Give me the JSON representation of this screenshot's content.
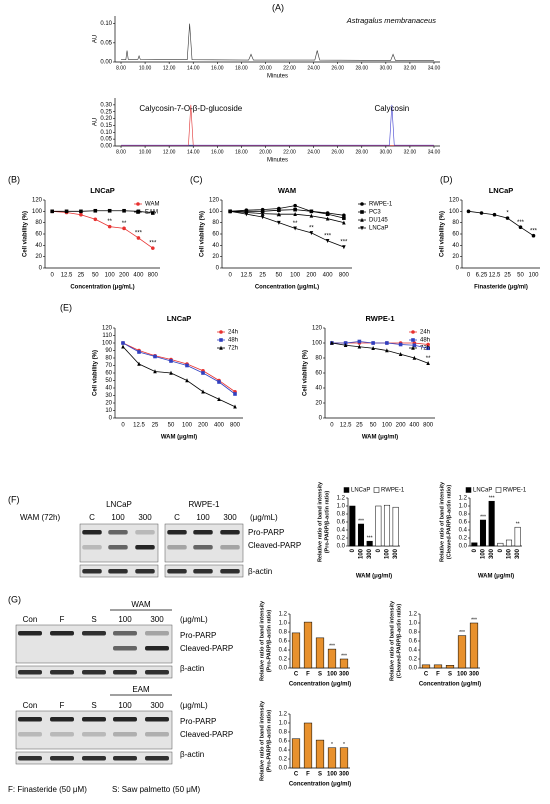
{
  "panels": [
    "(A)",
    "(B)",
    "(C)",
    "(D)",
    "(E)",
    "(F)",
    "(G)"
  ],
  "blots": {
    "F": {
      "treatment": "WAM (72h)",
      "cells": [
        "LNCaP",
        "RWPE-1"
      ],
      "lanes": [
        "C",
        "100",
        "300",
        "C",
        "100",
        "300"
      ],
      "unit": "(μg/mL)",
      "bands": [
        "Pro-PARP",
        "Cleaved-PARP",
        "β-actin"
      ]
    },
    "G": [
      {
        "treatment": "WAM",
        "lanes": [
          "Con",
          "F",
          "S",
          "100",
          "300"
        ],
        "unit": "(μg/mL)",
        "bands": [
          "Pro-PARP",
          "Cleaved-PARP",
          "β-actin"
        ]
      },
      {
        "treatment": "EAM",
        "lanes": [
          "Con",
          "F",
          "S",
          "100",
          "300"
        ],
        "unit": "(μg/mL)",
        "bands": [
          "Pro-PARP",
          "Cleaved-PARP",
          "β-actin"
        ]
      }
    ],
    "footnotes": [
      "F: Finasteride (50 μM)",
      "S: Saw palmetto (50 μM)"
    ]
  },
  "chart_data": [
    {
      "type": "line",
      "title": "Astragalus membranaceus",
      "xlabel": "Minutes",
      "ylabel": "AU",
      "x": [
        8,
        8.4,
        8.5,
        8.6,
        9.4,
        9.5,
        9.6,
        13.5,
        13.7,
        13.9,
        18.6,
        18.8,
        19,
        24.1,
        24.3,
        24.5,
        30.4,
        30.6,
        30.8,
        34
      ],
      "series": [
        {
          "color": "#333333",
          "values": [
            0.006,
            0.006,
            0.03,
            0.007,
            0.007,
            0.016,
            0.007,
            0.006,
            0.1,
            0.006,
            0.005,
            0.02,
            0.005,
            0.005,
            0.03,
            0.005,
            0.004,
            0.02,
            0.004,
            0.004
          ]
        }
      ],
      "xlim": [
        7.5,
        34.5
      ],
      "xticks": [
        {
          "value": 8,
          "label": "8.00"
        },
        {
          "value": 10,
          "label": "10.00"
        },
        {
          "value": 12,
          "label": "12.00"
        },
        {
          "value": 14,
          "label": "14.00"
        },
        {
          "value": 16,
          "label": "16.00"
        },
        {
          "value": 18,
          "label": "18.00"
        },
        {
          "value": 20,
          "label": "20.00"
        },
        {
          "value": 22,
          "label": "22.00"
        },
        {
          "value": 24,
          "label": "24.00"
        },
        {
          "value": 26,
          "label": "26.00"
        },
        {
          "value": 28,
          "label": "28.00"
        },
        {
          "value": 30,
          "label": "30.00"
        },
        {
          "value": 32,
          "label": "32.00"
        },
        {
          "value": 34,
          "label": "34.00"
        }
      ],
      "ylim": [
        0,
        0.12
      ],
      "yticks": [
        {
          "value": 0,
          "label": "0.00"
        },
        0.05,
        {
          "value": 0.1,
          "label": "0.10"
        }
      ]
    },
    {
      "type": "line",
      "xlabel": "Minutes",
      "ylabel": "AU",
      "x": [
        8,
        13.6,
        13.8,
        14,
        30.3,
        30.5,
        30.7,
        34
      ],
      "series": [
        {
          "name": "Calycosin-7-O-β-D-glucoside",
          "color": "#e03030",
          "values": [
            0.003,
            0.003,
            0.3,
            0.003,
            0.003,
            0.003,
            0.003,
            0.003
          ]
        },
        {
          "name": "Calycosin",
          "color": "#4040d0",
          "values": [
            0.006,
            0.006,
            0.006,
            0.006,
            0.006,
            0.3,
            0.006,
            0.006
          ]
        }
      ],
      "xlim": [
        7.5,
        34.5
      ],
      "xticks": [
        {
          "value": 8,
          "label": "8.00"
        },
        {
          "value": 10,
          "label": "10.00"
        },
        {
          "value": 12,
          "label": "12.00"
        },
        {
          "value": 14,
          "label": "14.00"
        },
        {
          "value": 16,
          "label": "16.00"
        },
        {
          "value": 18,
          "label": "18.00"
        },
        {
          "value": 20,
          "label": "20.00"
        },
        {
          "value": 22,
          "label": "22.00"
        },
        {
          "value": 24,
          "label": "24.00"
        },
        {
          "value": 26,
          "label": "26.00"
        },
        {
          "value": 28,
          "label": "28.00"
        },
        {
          "value": 30,
          "label": "30.00"
        },
        {
          "value": 32,
          "label": "32.00"
        },
        {
          "value": 34,
          "label": "34.00"
        }
      ],
      "ylim": [
        0,
        0.35
      ],
      "yticks": [
        {
          "value": 0,
          "label": "0.00"
        },
        0.05,
        {
          "value": 0.1,
          "label": "0.10"
        },
        0.15,
        {
          "value": 0.2,
          "label": "0.20"
        },
        0.25,
        {
          "value": 0.3,
          "label": "0.30"
        }
      ]
    },
    {
      "type": "line",
      "title": "LNCaP",
      "xlabel": "Concentration (μg/mL)",
      "ylabel": "Cell viability (%)",
      "categories": [
        "0",
        "12.5",
        "25",
        "50",
        "100",
        "200",
        "400",
        "800"
      ],
      "legend": "upper right",
      "series": [
        {
          "name": "WAM",
          "color": "#e8312f",
          "marker": "circle",
          "values": [
            100,
            98,
            94,
            86,
            73,
            70,
            53,
            35
          ],
          "stars": [
            null,
            null,
            null,
            null,
            "**",
            "**",
            "***",
            "***"
          ]
        },
        {
          "name": "EAM",
          "color": "#000000",
          "marker": "square",
          "values": [
            100,
            100,
            100,
            101,
            101,
            101,
            100,
            97
          ]
        }
      ],
      "ylim": [
        0,
        120
      ],
      "yticks": [
        0,
        20,
        40,
        60,
        80,
        100,
        120
      ]
    },
    {
      "type": "line",
      "title": "WAM",
      "xlabel": "Concentration (μg/mL)",
      "ylabel": "Cell viability (%)",
      "categories": [
        "0",
        "12.5",
        "25",
        "50",
        "100",
        "200",
        "400",
        "800"
      ],
      "legend": "outside right",
      "series": [
        {
          "name": "RWPE-1",
          "color": "#000000",
          "marker": "circle",
          "values": [
            100,
            102,
            103,
            105,
            110,
            100,
            97,
            93
          ]
        },
        {
          "name": "PC3",
          "color": "#000000",
          "marker": "square",
          "values": [
            100,
            100,
            100,
            102,
            103,
            100,
            95,
            88
          ]
        },
        {
          "name": "DU145",
          "color": "#000000",
          "marker": "triangle",
          "values": [
            100,
            98,
            96,
            95,
            95,
            92,
            87,
            80
          ]
        },
        {
          "name": "LNCaP",
          "color": "#000000",
          "marker": "triangle-down",
          "values": [
            100,
            95,
            90,
            80,
            70,
            62,
            48,
            37
          ],
          "stars": [
            null,
            null,
            null,
            "**",
            "**",
            "**",
            "***",
            "***"
          ]
        }
      ],
      "ylim": [
        0,
        120
      ],
      "yticks": [
        0,
        20,
        40,
        60,
        80,
        100,
        120
      ]
    },
    {
      "type": "line",
      "title": "LNCaP",
      "xlabel": "Finasteride (μg/ml)",
      "ylabel": "Cell viability (%)",
      "categories": [
        "0",
        "6.25",
        "12.5",
        "25",
        "50",
        "100"
      ],
      "series": [
        {
          "color": "#000000",
          "marker": "circle",
          "values": [
            100,
            97,
            94,
            88,
            72,
            57
          ],
          "stars": [
            null,
            null,
            null,
            "*",
            "***",
            "***"
          ]
        }
      ],
      "ylim": [
        0,
        120
      ],
      "yticks": [
        0,
        20,
        40,
        60,
        80,
        100,
        120
      ]
    },
    {
      "type": "line",
      "title": "LNCaP",
      "xlabel": "WAM (μg/ml)",
      "ylabel": "Cell viability (%)",
      "categories": [
        "0",
        "12.5",
        "25",
        "50",
        "100",
        "200",
        "400",
        "800"
      ],
      "legend": "upper right",
      "series": [
        {
          "name": "24h",
          "color": "#e8312f",
          "marker": "circle",
          "values": [
            100,
            90,
            83,
            78,
            72,
            63,
            50,
            35
          ]
        },
        {
          "name": "48h",
          "color": "#3040c0",
          "marker": "square",
          "values": [
            100,
            88,
            82,
            76,
            70,
            60,
            48,
            32
          ]
        },
        {
          "name": "72h",
          "color": "#000000",
          "marker": "triangle",
          "values": [
            95,
            72,
            62,
            60,
            50,
            35,
            25,
            15
          ]
        }
      ],
      "ylim": [
        0,
        120
      ],
      "yticks": [
        0,
        10,
        20,
        30,
        40,
        50,
        60,
        70,
        80,
        90,
        100,
        110,
        120
      ]
    },
    {
      "type": "line",
      "title": "RWPE-1",
      "xlabel": "WAM (μg/ml)",
      "ylabel": "Cell viability (%)",
      "categories": [
        "0",
        "12.5",
        "25",
        "50",
        "100",
        "200",
        "400",
        "800"
      ],
      "legend": "upper right",
      "series": [
        {
          "name": "24h",
          "color": "#e8312f",
          "marker": "circle",
          "values": [
            100,
            100,
            100,
            100,
            100,
            100,
            100,
            98
          ]
        },
        {
          "name": "48h",
          "color": "#3040c0",
          "marker": "square",
          "values": [
            100,
            100,
            102,
            100,
            100,
            98,
            97,
            93
          ]
        },
        {
          "name": "72h",
          "color": "#000000",
          "marker": "triangle",
          "values": [
            100,
            97,
            95,
            93,
            90,
            85,
            80,
            73
          ],
          "stars": [
            null,
            null,
            null,
            null,
            null,
            null,
            null,
            "**"
          ]
        }
      ],
      "ylim": [
        0,
        120
      ],
      "yticks": [
        0,
        20,
        40,
        60,
        80,
        100,
        120
      ]
    },
    {
      "type": "bar",
      "xlabel": "WAM (μg/ml)",
      "ylabel": [
        "Relative ratio of band intensity",
        "(Pro-PARP/β-actin ratio)"
      ],
      "categories": [
        "0",
        "100",
        "300"
      ],
      "legend": "top",
      "series": [
        {
          "name": "LNCaP",
          "color": "#000000",
          "values": [
            1.0,
            0.55,
            0.12
          ],
          "stars": [
            null,
            "***",
            "***"
          ]
        },
        {
          "name": "RWPE-1",
          "color": "#ffffff",
          "values": [
            1.0,
            1.02,
            0.97
          ]
        }
      ],
      "ylim": [
        0,
        1.2
      ],
      "yticks": [
        {
          "value": 0,
          "label": "0.0"
        },
        0.2,
        0.4,
        0.6,
        0.8,
        {
          "value": 1,
          "label": "1.0"
        },
        1.2
      ]
    },
    {
      "type": "bar",
      "xlabel": "WAM (μg/ml)",
      "ylabel": [
        "Relative ratio of band intensity",
        "(Cleaved-PARP/β-actin ratio)"
      ],
      "categories": [
        "0",
        "100",
        "300"
      ],
      "legend": "top",
      "series": [
        {
          "name": "LNCaP",
          "color": "#000000",
          "values": [
            0.08,
            0.65,
            1.12
          ],
          "stars": [
            null,
            "***",
            "***"
          ]
        },
        {
          "name": "RWPE-1",
          "color": "#ffffff",
          "values": [
            0.07,
            0.15,
            0.47
          ],
          "stars": [
            null,
            null,
            "**"
          ]
        }
      ],
      "ylim": [
        0,
        1.2
      ],
      "yticks": [
        {
          "value": 0,
          "label": "0.0"
        },
        0.2,
        0.4,
        0.6,
        0.8,
        {
          "value": 1,
          "label": "1.0"
        },
        1.2
      ]
    },
    {
      "type": "bar",
      "xlabel": "Concentration (μg/ml)",
      "ylabel": [
        "Relative ratio of band intensity",
        "(Pro-PARP/β-actin ratio)"
      ],
      "categories": [
        "C",
        "F",
        "S",
        "100",
        "300"
      ],
      "series": [
        {
          "color": "#e8912d",
          "values": [
            0.78,
            1.02,
            0.67,
            0.42,
            0.2
          ],
          "stars": [
            null,
            null,
            null,
            "***",
            "***"
          ]
        }
      ],
      "ylim": [
        0,
        1.2
      ],
      "yticks": [
        {
          "value": 0,
          "label": "0.0"
        },
        0.2,
        0.4,
        0.6,
        0.8,
        {
          "value": 1,
          "label": "1.0"
        },
        1.2
      ]
    },
    {
      "type": "bar",
      "xlabel": "Concentration (μg/ml)",
      "ylabel": [
        "Relative ratio of band intensity",
        "(Cleaved-PARP/β-actin ratio)"
      ],
      "categories": [
        "C",
        "F",
        "S",
        "100",
        "300"
      ],
      "series": [
        {
          "color": "#e8912d",
          "values": [
            0.07,
            0.07,
            0.06,
            0.72,
            1.0
          ],
          "stars": [
            null,
            null,
            null,
            "***",
            "***"
          ]
        }
      ],
      "ylim": [
        0,
        1.2
      ],
      "yticks": [
        {
          "value": 0,
          "label": "0.0"
        },
        0.2,
        0.4,
        0.6,
        0.8,
        {
          "value": 1,
          "label": "1.0"
        },
        1.2
      ]
    },
    {
      "type": "bar",
      "xlabel": "Concentration (μg/ml)",
      "ylabel": [
        "Relative ratio of band intensity",
        "(Pro-PARP/β-actin ratio)"
      ],
      "categories": [
        "C",
        "F",
        "S",
        "100",
        "300"
      ],
      "series": [
        {
          "color": "#e8912d",
          "values": [
            0.65,
            1.0,
            0.62,
            0.45,
            0.45
          ],
          "stars": [
            null,
            null,
            null,
            "*",
            "*"
          ]
        }
      ],
      "ylim": [
        0,
        1.2
      ],
      "yticks": [
        {
          "value": 0,
          "label": "0.0"
        },
        0.2,
        0.4,
        0.6,
        0.8,
        {
          "value": 1,
          "label": "1.0"
        },
        1.2
      ]
    }
  ]
}
